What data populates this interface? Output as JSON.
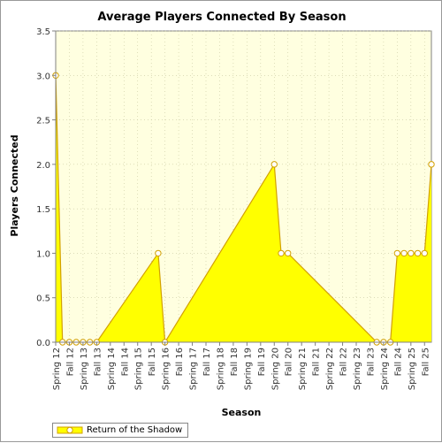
{
  "chart_data": {
    "type": "area",
    "title": "Average Players Connected By Season",
    "xlabel": "Season",
    "ylabel": "Players Connected",
    "ylim": [
      0,
      3.5
    ],
    "yticks": [
      "0.0",
      "0.5",
      "1.0",
      "1.5",
      "2.0",
      "2.5",
      "3.0",
      "3.5"
    ],
    "categories": [
      "Spring 12",
      "Fall 12",
      "Spring 13",
      "Fall 13",
      "Spring 14",
      "Fall 14",
      "Spring 15",
      "Fall 15",
      "Spring 16",
      "Fall 16",
      "Spring 17",
      "Fall 17",
      "Spring 18",
      "Fall 18",
      "Spring 19",
      "Fall 19",
      "Spring 20",
      "Fall 20",
      "Spring 21",
      "Fall 21",
      "Spring 22",
      "Fall 22",
      "Spring 23",
      "Fall 23",
      "Spring 24",
      "Fall 24",
      "Spring 25",
      "Fall 25"
    ],
    "grid": true,
    "legend_position": "bottom-left",
    "series": [
      {
        "name": "Return of the Shadow",
        "color": "#ffff00",
        "line_color": "#d2a000",
        "points": [
          {
            "x": 0,
            "y": 3.0
          },
          {
            "x": 0.5,
            "y": 0.0
          },
          {
            "x": 1,
            "y": 0.0
          },
          {
            "x": 1.5,
            "y": 0.0
          },
          {
            "x": 2,
            "y": 0.0
          },
          {
            "x": 2.5,
            "y": 0.0
          },
          {
            "x": 3,
            "y": 0.0
          },
          {
            "x": 7.5,
            "y": 1.0
          },
          {
            "x": 8,
            "y": 0.0
          },
          {
            "x": 16,
            "y": 2.0
          },
          {
            "x": 16.5,
            "y": 1.0
          },
          {
            "x": 17,
            "y": 1.0
          },
          {
            "x": 23.5,
            "y": 0.0
          },
          {
            "x": 24,
            "y": 0.0
          },
          {
            "x": 24.5,
            "y": 0.0
          },
          {
            "x": 25,
            "y": 1.0
          },
          {
            "x": 25.5,
            "y": 1.0
          },
          {
            "x": 26,
            "y": 1.0
          },
          {
            "x": 26.5,
            "y": 1.0
          },
          {
            "x": 27,
            "y": 1.0
          },
          {
            "x": 27.5,
            "y": 2.0
          }
        ]
      }
    ]
  }
}
